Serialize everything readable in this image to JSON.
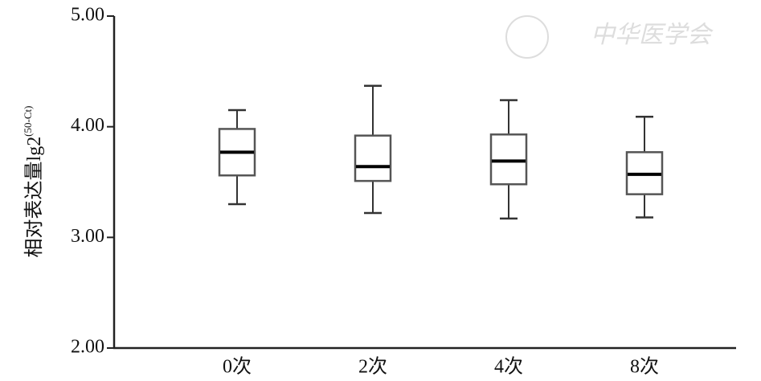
{
  "chart_data": {
    "type": "box",
    "y_label": "相对表达量lg2",
    "y_label_superscript": "(50-Ct)",
    "watermark": "中华医学会",
    "categories": [
      "0次",
      "2次",
      "4次",
      "8次"
    ],
    "boxes": [
      {
        "min": 3.3,
        "q1": 3.56,
        "median": 3.77,
        "q3": 3.98,
        "max": 4.15
      },
      {
        "min": 3.22,
        "q1": 3.51,
        "median": 3.64,
        "q3": 3.92,
        "max": 4.37
      },
      {
        "min": 3.17,
        "q1": 3.48,
        "median": 3.69,
        "q3": 3.93,
        "max": 4.24
      },
      {
        "min": 3.18,
        "q1": 3.39,
        "median": 3.57,
        "q3": 3.77,
        "max": 4.09
      }
    ],
    "color": "#333333",
    "ylim": [
      2,
      5
    ],
    "yticks": [
      {
        "value": 2,
        "label": "2.00"
      },
      {
        "value": 3,
        "label": "3.00"
      },
      {
        "value": 4,
        "label": "4.00"
      },
      {
        "value": 5,
        "label": "5.00"
      }
    ]
  }
}
